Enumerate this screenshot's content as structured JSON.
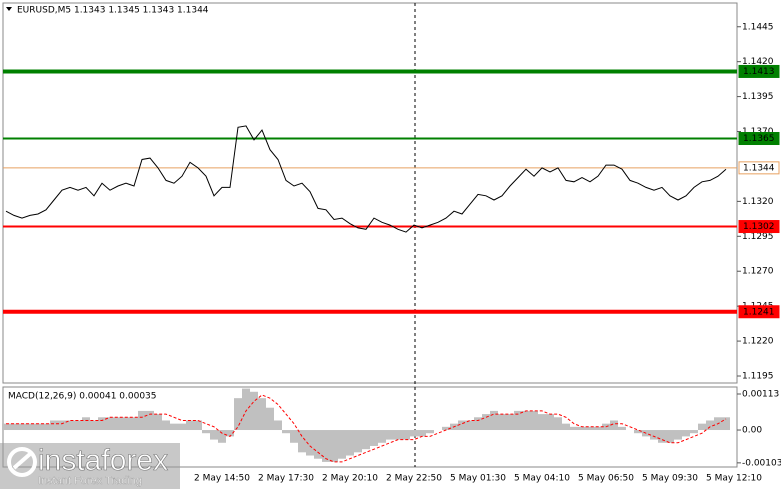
{
  "chart_data": [
    {
      "type": "line",
      "title": "EURUSD,M5  1.1343 1.1345 1.1343 1.1344",
      "color": "#000000",
      "categories": [
        null,
        null,
        null,
        null,
        null,
        null,
        null,
        null,
        null,
        null,
        null,
        null,
        null,
        null,
        null,
        null,
        null,
        null,
        null,
        null,
        null,
        null,
        null,
        null,
        null,
        null,
        null,
        "2 May 14:50",
        null,
        null,
        null,
        null,
        null,
        null,
        null,
        "2 May 17:30",
        null,
        null,
        null,
        null,
        null,
        null,
        null,
        "2 May 20:10",
        null,
        null,
        null,
        null,
        null,
        null,
        null,
        "2 May 22:50",
        null,
        null,
        null,
        null,
        null,
        null,
        null,
        "5 May 01:30",
        null,
        null,
        null,
        null,
        null,
        null,
        null,
        "5 May 04:10",
        null,
        null,
        null,
        null,
        null,
        null,
        null,
        "5 May 06:50",
        null,
        null,
        null,
        null,
        null,
        null,
        null,
        "5 May 09:30",
        null,
        null,
        null,
        null,
        null,
        null,
        null,
        "5 May 12:10"
      ],
      "values": [
        1.1313,
        1.131,
        1.1308,
        1.131,
        1.1311,
        1.1314,
        1.1321,
        1.1328,
        1.133,
        1.1328,
        1.133,
        1.1324,
        1.1333,
        1.1328,
        1.1331,
        1.1333,
        1.1331,
        1.135,
        1.1351,
        1.1344,
        1.1335,
        1.1333,
        1.1338,
        1.1348,
        1.1344,
        1.1338,
        1.1324,
        1.133,
        1.133,
        1.1373,
        1.1374,
        1.1364,
        1.1371,
        1.1357,
        1.135,
        1.1335,
        1.1331,
        1.1333,
        1.1327,
        1.1315,
        1.1314,
        1.1307,
        1.1308,
        1.1304,
        1.1301,
        1.13,
        1.1308,
        1.1305,
        1.1303,
        1.13,
        1.1298,
        1.1303,
        1.1301,
        1.1303,
        1.1305,
        1.1308,
        1.1313,
        1.1311,
        1.1318,
        1.1325,
        1.1324,
        1.1321,
        1.1324,
        1.1331,
        1.1337,
        1.1343,
        1.1338,
        1.1344,
        1.1341,
        1.1344,
        1.1335,
        1.1334,
        1.1337,
        1.1334,
        1.1338,
        1.1346,
        1.1346,
        1.1343,
        1.1335,
        1.1333,
        1.133,
        1.1328,
        1.133,
        1.1324,
        1.1321,
        1.1324,
        1.133,
        1.1334,
        1.1335,
        1.1338,
        1.1343,
        null
      ],
      "ylim": [
        1.119,
        1.1462
      ],
      "yticks": [
        1.1445,
        {
          "value": 1.142,
          "label": "1.1420"
        },
        1.1395,
        {
          "value": 1.137,
          "label": "1.1370"
        },
        {
          "value": 1.132,
          "label": "1.1320"
        },
        1.1295,
        {
          "value": 1.127,
          "label": "1.1270"
        },
        1.1245,
        {
          "value": 1.122,
          "label": "1.1220"
        },
        1.1195
      ],
      "levels": [
        {
          "value": 1.1413,
          "color": "#008000",
          "linewidth": 4,
          "label_color": "#ffffff"
        },
        {
          "value": 1.1365,
          "color": "#008000",
          "linewidth": 2,
          "label_color": "#ffffff"
        },
        {
          "value": 1.1344,
          "color": "#e8a060",
          "linewidth": 1,
          "label_color": "#000000"
        },
        {
          "value": 1.1302,
          "color": "#ff0000",
          "linewidth": 2,
          "label_color": "#ffffff"
        },
        {
          "value": 1.1241,
          "color": "#ff0000",
          "linewidth": 4,
          "label_color": "#ffffff"
        }
      ]
    },
    {
      "type": "macd",
      "title": "MACD(12,26,9) 0.00041 0.00035",
      "ylim": [
        -0.00116,
        0.00135
      ],
      "yticks": [
        0.00113,
        {
          "value": 0,
          "label": "0.00"
        },
        -0.00103
      ],
      "histogram": {
        "color": "#c0c0c0",
        "values": [
          0.0002,
          0.0002,
          0.0002,
          0.0002,
          0.0002,
          0.0002,
          0.0003,
          0.0003,
          0.0003,
          0.0003,
          0.0004,
          0.0003,
          0.0004,
          0.0004,
          0.0004,
          0.0004,
          0.0004,
          0.0006,
          0.0006,
          0.0005,
          0.0003,
          0.0002,
          0.0002,
          0.0003,
          0.0003,
          -0.0001,
          -0.0003,
          -0.0004,
          -0.0002,
          0.001,
          0.0013,
          0.0012,
          0.001,
          0.0007,
          0.0003,
          -0.0001,
          -0.0004,
          -0.0007,
          -0.0008,
          -0.0009,
          -0.001,
          -0.001,
          -0.0009,
          -0.0008,
          -0.0007,
          -0.0006,
          -0.0005,
          -0.0004,
          -0.0003,
          -0.0003,
          -0.0003,
          -0.0002,
          -0.0002,
          -0.0001,
          0,
          0.0001,
          0.0002,
          0.0003,
          0.0003,
          0.0004,
          0.0005,
          0.0006,
          0.0005,
          0.0005,
          0.0006,
          0.0006,
          0.0006,
          0.0005,
          0.0005,
          0.0004,
          0.0002,
          0.0001,
          0.0001,
          0.0001,
          0.0001,
          0.0002,
          0.0003,
          0.0001,
          0,
          -0.0001,
          -0.0002,
          -0.0003,
          -0.0004,
          -0.0004,
          -0.0003,
          -0.0002,
          -0.0001,
          0.0002,
          0.0003,
          0.0004,
          0.0004,
          null
        ]
      },
      "signal": {
        "color": "#ff0000",
        "values": [
          0.0002,
          0.0002,
          0.0002,
          0.0002,
          0.0002,
          0.0002,
          0.0002,
          0.0002,
          0.0003,
          0.0003,
          0.0003,
          0.0003,
          0.0003,
          0.0004,
          0.0004,
          0.0004,
          0.0004,
          0.0004,
          0.0005,
          0.0005,
          0.0005,
          0.0004,
          0.0003,
          0.0003,
          0.0003,
          0.0002,
          0.0001,
          -0.0001,
          -0.0002,
          0.0001,
          0.0006,
          0.0009,
          0.0011,
          0.001,
          0.0008,
          0.0005,
          0.0002,
          -0.0002,
          -0.0005,
          -0.0007,
          -0.0009,
          -0.001,
          -0.001,
          -0.0009,
          -0.0008,
          -0.0007,
          -0.0006,
          -0.0005,
          -0.0004,
          -0.0003,
          -0.0003,
          -0.0003,
          -0.0002,
          -0.0002,
          -0.0001,
          0,
          0.0001,
          0.0002,
          0.0003,
          0.0003,
          0.0004,
          0.0005,
          0.0005,
          0.0005,
          0.0005,
          0.0006,
          0.0006,
          0.0006,
          0.0005,
          0.0005,
          0.0004,
          0.0002,
          0.0001,
          0.0001,
          0.0001,
          0.0001,
          0.0002,
          0.0002,
          0.0001,
          0,
          -0.0001,
          -0.0002,
          -0.0003,
          -0.0004,
          -0.0004,
          -0.0003,
          -0.0002,
          -0.0001,
          0.0001,
          0.0002,
          0.00035,
          null
        ]
      }
    }
  ],
  "watermark": {
    "brand": "instaforex",
    "tagline": "Instant Forex Trading"
  }
}
